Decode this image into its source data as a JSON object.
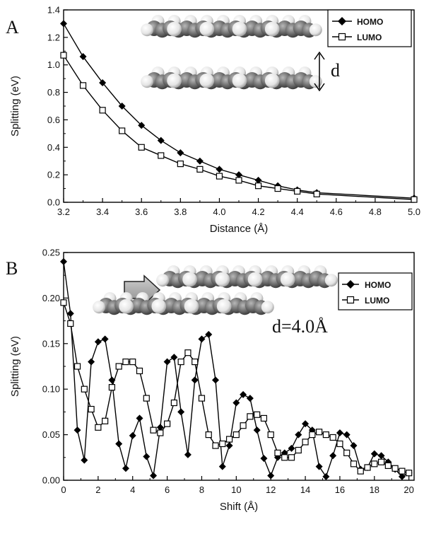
{
  "chart_data": [
    {
      "panel": "A",
      "type": "line",
      "xlabel": "Distance (Å)",
      "ylabel": "Splitting (eV)",
      "xlim": [
        3.2,
        5.0
      ],
      "ylim": [
        0.0,
        1.4
      ],
      "xticks": [
        "3.2",
        "3.4",
        "3.6",
        "3.8",
        "4.0",
        "4.2",
        "4.4",
        "4.6",
        "4.8",
        "5.0"
      ],
      "yticks": [
        "0.0",
        "0.2",
        "0.4",
        "0.6",
        "0.8",
        "1.0",
        "1.2",
        "1.4"
      ],
      "legend_position": "top-right",
      "annotation": "d",
      "series": [
        {
          "name": "HOMO",
          "marker": "filled-diamond",
          "color": "#000000",
          "x": [
            3.2,
            3.3,
            3.4,
            3.5,
            3.6,
            3.7,
            3.8,
            3.9,
            4.0,
            4.1,
            4.2,
            4.3,
            4.4,
            4.5,
            5.0
          ],
          "y": [
            1.3,
            1.06,
            0.87,
            0.7,
            0.56,
            0.45,
            0.36,
            0.3,
            0.24,
            0.2,
            0.16,
            0.12,
            0.09,
            0.07,
            0.03
          ]
        },
        {
          "name": "LUMO",
          "marker": "open-square",
          "color": "#000000",
          "x": [
            3.2,
            3.3,
            3.4,
            3.5,
            3.6,
            3.7,
            3.8,
            3.9,
            4.0,
            4.1,
            4.2,
            4.3,
            4.4,
            4.5,
            5.0
          ],
          "y": [
            1.07,
            0.85,
            0.67,
            0.52,
            0.4,
            0.34,
            0.28,
            0.24,
            0.19,
            0.16,
            0.12,
            0.1,
            0.08,
            0.06,
            0.02
          ]
        }
      ]
    },
    {
      "panel": "B",
      "type": "line",
      "xlabel": "Shift (Å)",
      "ylabel": "Splitting (eV)",
      "xlim": [
        0,
        20.3
      ],
      "ylim": [
        0.0,
        0.25
      ],
      "xticks": [
        "0",
        "2",
        "4",
        "6",
        "8",
        "10",
        "12",
        "14",
        "16",
        "18",
        "20"
      ],
      "yticks": [
        "0.00",
        "0.05",
        "0.10",
        "0.15",
        "0.20",
        "0.25"
      ],
      "legend_position": "top-right",
      "annotation": "d=4.0Å",
      "series": [
        {
          "name": "HOMO",
          "marker": "filled-diamond",
          "color": "#000000",
          "x": [
            0,
            0.4,
            0.8,
            1.2,
            1.6,
            2.0,
            2.4,
            2.8,
            3.2,
            3.6,
            4.0,
            4.4,
            4.8,
            5.2,
            5.6,
            6.0,
            6.4,
            6.8,
            7.2,
            7.6,
            8.0,
            8.4,
            8.8,
            9.2,
            9.6,
            10.0,
            10.4,
            10.8,
            11.2,
            11.6,
            12.0,
            12.4,
            12.8,
            13.2,
            13.6,
            14.0,
            14.4,
            14.8,
            15.2,
            15.6,
            16.0,
            16.4,
            16.8,
            17.2,
            17.6,
            18.0,
            18.4,
            18.8,
            19.2,
            19.6,
            20.0
          ],
          "y": [
            0.24,
            0.183,
            0.055,
            0.022,
            0.13,
            0.152,
            0.155,
            0.11,
            0.04,
            0.013,
            0.049,
            0.068,
            0.026,
            0.005,
            0.058,
            0.13,
            0.135,
            0.075,
            0.028,
            0.11,
            0.155,
            0.16,
            0.11,
            0.015,
            0.038,
            0.085,
            0.094,
            0.09,
            0.055,
            0.024,
            0.005,
            0.025,
            0.03,
            0.035,
            0.05,
            0.062,
            0.055,
            0.015,
            0.004,
            0.027,
            0.052,
            0.05,
            0.038,
            0.012,
            0.014,
            0.029,
            0.027,
            0.02,
            0.012,
            0.004,
            0.008
          ]
        },
        {
          "name": "LUMO",
          "marker": "open-square",
          "color": "#000000",
          "x": [
            0,
            0.4,
            0.8,
            1.2,
            1.6,
            2.0,
            2.4,
            2.8,
            3.2,
            3.6,
            4.0,
            4.4,
            4.8,
            5.2,
            5.6,
            6.0,
            6.4,
            6.8,
            7.2,
            7.6,
            8.0,
            8.4,
            8.8,
            9.2,
            9.6,
            10.0,
            10.4,
            10.8,
            11.2,
            11.6,
            12.0,
            12.4,
            12.8,
            13.2,
            13.6,
            14.0,
            14.4,
            14.8,
            15.2,
            15.6,
            16.0,
            16.4,
            16.8,
            17.2,
            17.6,
            18.0,
            18.4,
            18.8,
            19.2,
            19.6,
            20.0
          ],
          "y": [
            0.195,
            0.172,
            0.125,
            0.1,
            0.078,
            0.058,
            0.065,
            0.102,
            0.125,
            0.13,
            0.13,
            0.12,
            0.09,
            0.055,
            0.052,
            0.062,
            0.085,
            0.13,
            0.14,
            0.13,
            0.09,
            0.05,
            0.038,
            0.04,
            0.045,
            0.05,
            0.06,
            0.07,
            0.072,
            0.068,
            0.05,
            0.03,
            0.025,
            0.025,
            0.033,
            0.042,
            0.05,
            0.053,
            0.05,
            0.047,
            0.04,
            0.03,
            0.018,
            0.01,
            0.014,
            0.018,
            0.02,
            0.016,
            0.013,
            0.01,
            0.008
          ]
        }
      ]
    }
  ],
  "panel_letters": {
    "a": "A",
    "b": "B"
  },
  "icons": {
    "molecule": "molecule-model-icon",
    "arrow": "shift-arrow-icon",
    "distance": "distance-arrow-icon"
  }
}
